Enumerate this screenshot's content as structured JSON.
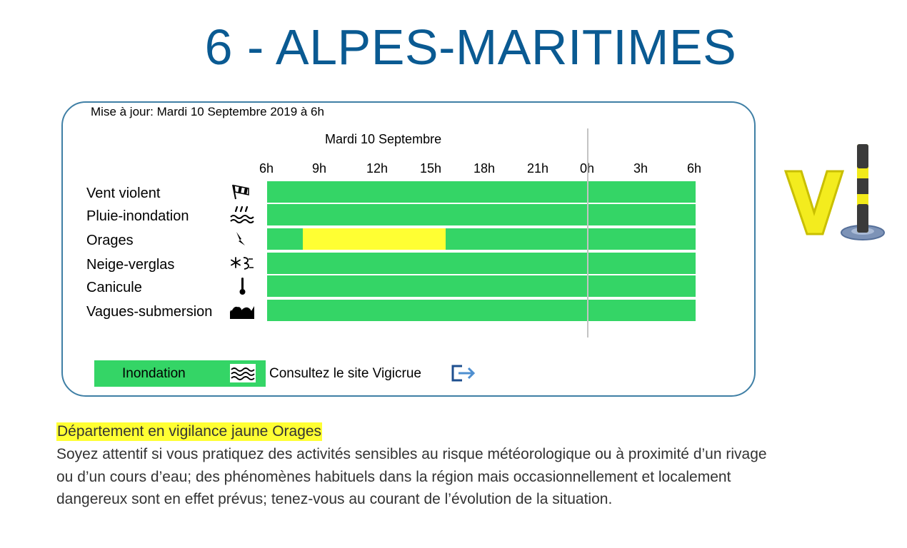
{
  "title": "6 - ALPES-MARITIMES",
  "update_text": "Mise à jour: Mardi 10 Septembre 2019 à 6h",
  "day_label": "Mardi 10 Septembre",
  "hours": [
    "6h",
    "9h",
    "12h",
    "15h",
    "18h",
    "21h",
    "0h",
    "3h",
    "6h"
  ],
  "colors": {
    "green": "#34d566",
    "yellow": "#ffff33",
    "title_blue": "#0a5a92"
  },
  "phenomena": [
    {
      "label": "Vent violent",
      "icon": "windsock-icon",
      "segments": [
        {
          "start_hour": 6,
          "end_hour": 30,
          "level": "green"
        }
      ]
    },
    {
      "label": "Pluie-inondation",
      "icon": "rain-flood-icon",
      "segments": [
        {
          "start_hour": 6,
          "end_hour": 30,
          "level": "green"
        }
      ]
    },
    {
      "label": "Orages",
      "icon": "lightning-icon",
      "segments": [
        {
          "start_hour": 6,
          "end_hour": 8,
          "level": "green"
        },
        {
          "start_hour": 8,
          "end_hour": 16,
          "level": "yellow"
        },
        {
          "start_hour": 16,
          "end_hour": 30,
          "level": "green"
        }
      ]
    },
    {
      "label": "Neige-verglas",
      "icon": "snow-ice-icon",
      "segments": [
        {
          "start_hour": 6,
          "end_hour": 30,
          "level": "green"
        }
      ]
    },
    {
      "label": "Canicule",
      "icon": "thermometer-icon",
      "segments": [
        {
          "start_hour": 6,
          "end_hour": 30,
          "level": "green"
        }
      ]
    },
    {
      "label": "Vagues-submersion",
      "icon": "wave-icon",
      "segments": [
        {
          "start_hour": 6,
          "end_hour": 30,
          "level": "green"
        }
      ]
    }
  ],
  "legend": {
    "label": "Inondation",
    "icon": "flood-waves-icon",
    "link_text": "Consultez le site Vigicrue",
    "link_icon": "exit-icon"
  },
  "alert": {
    "headline": "Département en vigilance jaune Orages",
    "body": "Soyez attentif si vous pratiquez des activités sensibles au risque météorologique ou à proximité d’un rivage ou d’un cours d’eau; des phénomènes habituels dans la région mais occasionnellement et localement dangereux sont en effet prévus; tenez-vous au courant de l’évolution de la situation."
  },
  "logo": {
    "icon": "vigilance-logo-icon"
  }
}
